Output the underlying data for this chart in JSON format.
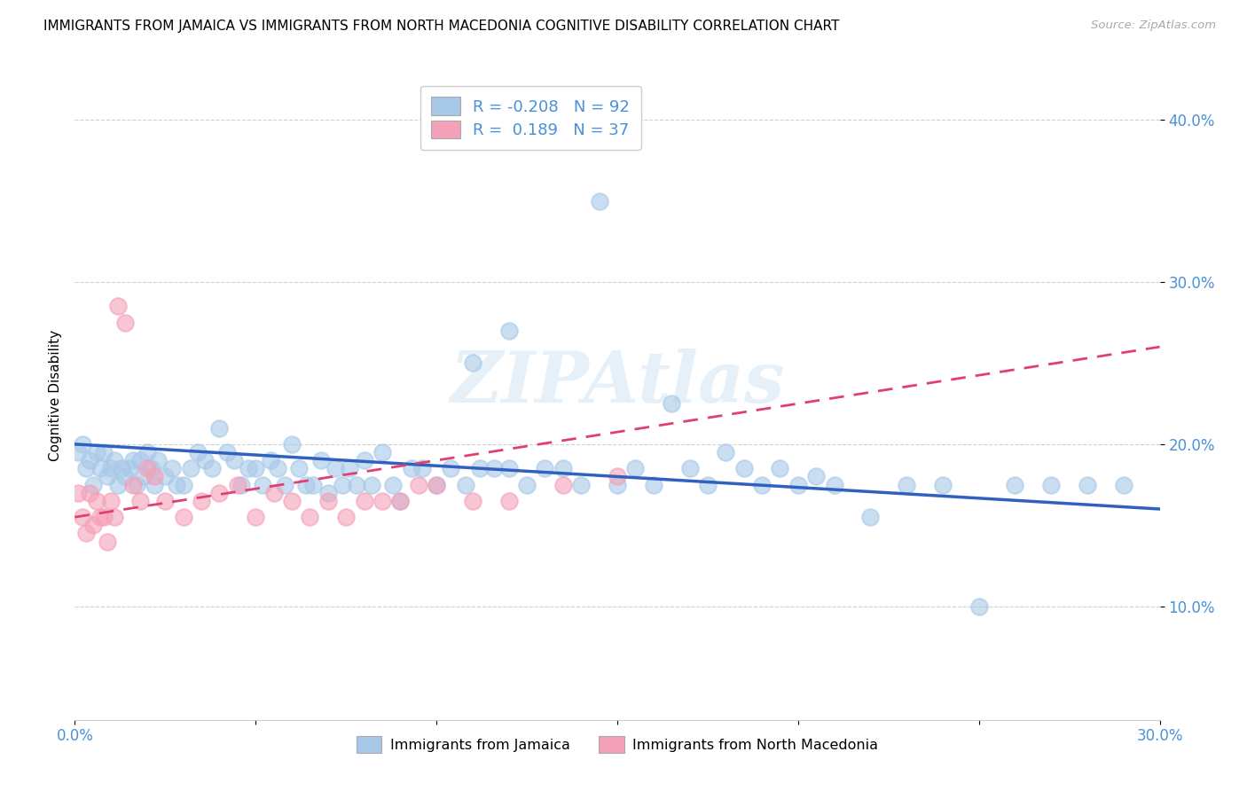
{
  "title": "IMMIGRANTS FROM JAMAICA VS IMMIGRANTS FROM NORTH MACEDONIA COGNITIVE DISABILITY CORRELATION CHART",
  "source": "Source: ZipAtlas.com",
  "ylabel": "Cognitive Disability",
  "xlim": [
    0.0,
    0.3
  ],
  "ylim": [
    0.03,
    0.43
  ],
  "y_ticks": [
    0.1,
    0.2,
    0.3,
    0.4
  ],
  "y_tick_labels": [
    "10.0%",
    "20.0%",
    "30.0%",
    "40.0%"
  ],
  "x_tick_positions": [
    0.0,
    0.05,
    0.1,
    0.15,
    0.2,
    0.25,
    0.3
  ],
  "x_tick_labels": [
    "0.0%",
    "",
    "",
    "",
    "",
    "",
    "30.0%"
  ],
  "legend_jamaica_R": "-0.208",
  "legend_jamaica_N": "92",
  "legend_macedonia_R": "0.189",
  "legend_macedonia_N": "37",
  "color_jamaica": "#a8c8e8",
  "color_macedonia": "#f4a0b8",
  "color_trendline_jamaica": "#3060c0",
  "color_trendline_macedonia": "#e04070",
  "watermark": "ZIPAtlas",
  "jamaica_x": [
    0.001,
    0.002,
    0.003,
    0.004,
    0.005,
    0.006,
    0.007,
    0.008,
    0.009,
    0.01,
    0.011,
    0.012,
    0.013,
    0.014,
    0.015,
    0.016,
    0.017,
    0.018,
    0.019,
    0.02,
    0.021,
    0.022,
    0.023,
    0.025,
    0.027,
    0.028,
    0.03,
    0.032,
    0.034,
    0.036,
    0.038,
    0.04,
    0.042,
    0.044,
    0.046,
    0.048,
    0.05,
    0.052,
    0.054,
    0.056,
    0.058,
    0.06,
    0.062,
    0.064,
    0.066,
    0.068,
    0.07,
    0.072,
    0.074,
    0.076,
    0.078,
    0.08,
    0.082,
    0.085,
    0.088,
    0.09,
    0.093,
    0.096,
    0.1,
    0.104,
    0.108,
    0.112,
    0.116,
    0.12,
    0.125,
    0.13,
    0.135,
    0.14,
    0.145,
    0.15,
    0.155,
    0.16,
    0.165,
    0.17,
    0.175,
    0.18,
    0.185,
    0.19,
    0.195,
    0.2,
    0.205,
    0.21,
    0.22,
    0.23,
    0.24,
    0.25,
    0.26,
    0.27,
    0.28,
    0.29,
    0.11,
    0.12
  ],
  "jamaica_y": [
    0.195,
    0.2,
    0.185,
    0.19,
    0.175,
    0.195,
    0.185,
    0.195,
    0.18,
    0.185,
    0.19,
    0.175,
    0.185,
    0.18,
    0.185,
    0.19,
    0.175,
    0.19,
    0.18,
    0.195,
    0.185,
    0.175,
    0.19,
    0.18,
    0.185,
    0.175,
    0.175,
    0.185,
    0.195,
    0.19,
    0.185,
    0.21,
    0.195,
    0.19,
    0.175,
    0.185,
    0.185,
    0.175,
    0.19,
    0.185,
    0.175,
    0.2,
    0.185,
    0.175,
    0.175,
    0.19,
    0.17,
    0.185,
    0.175,
    0.185,
    0.175,
    0.19,
    0.175,
    0.195,
    0.175,
    0.165,
    0.185,
    0.185,
    0.175,
    0.185,
    0.175,
    0.185,
    0.185,
    0.185,
    0.175,
    0.185,
    0.185,
    0.175,
    0.35,
    0.175,
    0.185,
    0.175,
    0.225,
    0.185,
    0.175,
    0.195,
    0.185,
    0.175,
    0.185,
    0.175,
    0.18,
    0.175,
    0.155,
    0.175,
    0.175,
    0.1,
    0.175,
    0.175,
    0.175,
    0.175,
    0.25,
    0.27
  ],
  "macedonia_x": [
    0.001,
    0.002,
    0.003,
    0.004,
    0.005,
    0.006,
    0.007,
    0.008,
    0.009,
    0.01,
    0.011,
    0.012,
    0.014,
    0.016,
    0.018,
    0.02,
    0.022,
    0.025,
    0.03,
    0.035,
    0.04,
    0.045,
    0.05,
    0.055,
    0.06,
    0.065,
    0.07,
    0.075,
    0.08,
    0.085,
    0.09,
    0.095,
    0.1,
    0.11,
    0.12,
    0.135,
    0.15
  ],
  "macedonia_y": [
    0.17,
    0.155,
    0.145,
    0.17,
    0.15,
    0.165,
    0.155,
    0.155,
    0.14,
    0.165,
    0.155,
    0.285,
    0.275,
    0.175,
    0.165,
    0.185,
    0.18,
    0.165,
    0.155,
    0.165,
    0.17,
    0.175,
    0.155,
    0.17,
    0.165,
    0.155,
    0.165,
    0.155,
    0.165,
    0.165,
    0.165,
    0.175,
    0.175,
    0.165,
    0.165,
    0.175,
    0.18
  ],
  "trendline_jamaica_x0": 0.0,
  "trendline_jamaica_y0": 0.2,
  "trendline_jamaica_x1": 0.3,
  "trendline_jamaica_y1": 0.16,
  "trendline_macedonia_x0": 0.0,
  "trendline_macedonia_y0": 0.155,
  "trendline_macedonia_x1": 0.3,
  "trendline_macedonia_y1": 0.26
}
